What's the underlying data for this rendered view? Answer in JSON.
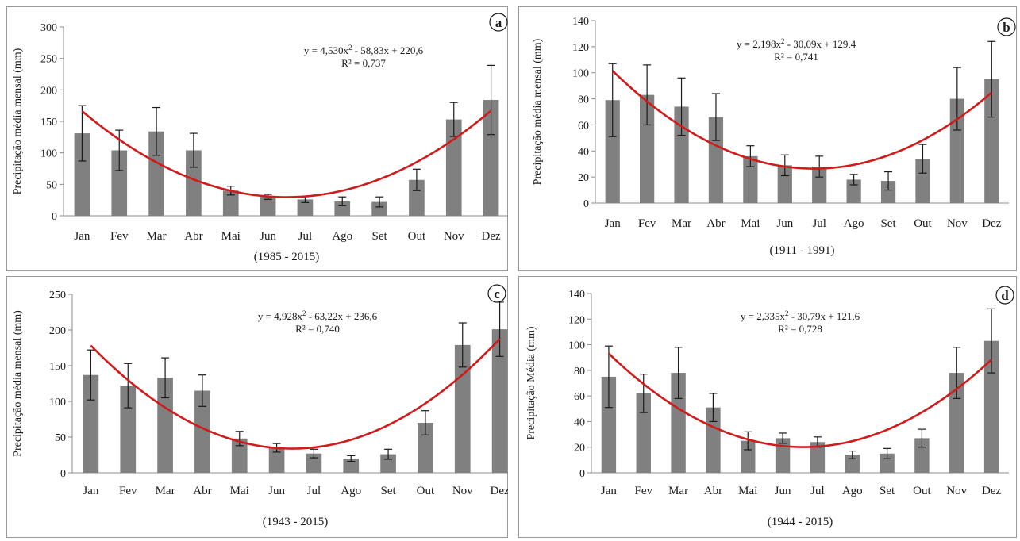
{
  "chart_data": [
    {
      "type": "bar",
      "panel": "a",
      "categories": [
        "Jan",
        "Fev",
        "Mar",
        "Abr",
        "Mai",
        "Jun",
        "Jul",
        "Ago",
        "Set",
        "Out",
        "Nov",
        "Dez"
      ],
      "values": [
        131,
        104,
        134,
        104,
        40,
        30,
        26,
        23,
        22,
        57,
        153,
        184
      ],
      "error": [
        44,
        32,
        38,
        27,
        7,
        4,
        5,
        7,
        8,
        17,
        27,
        55
      ],
      "ylim": [
        0,
        300
      ],
      "yticks": [
        0,
        50,
        100,
        150,
        200,
        250,
        300
      ],
      "ylabel": "Precipitação média mensal (mm)",
      "period": "(1985 - 2015)",
      "fit": {
        "a": 4.53,
        "b": -58.83,
        "c": 220.6,
        "eq_left": "y = 4,530x",
        "eq_right": " - 58,83x + 220,6",
        "r2": "R² = 0,737"
      },
      "legend": "none",
      "grid": false
    },
    {
      "type": "bar",
      "panel": "b",
      "categories": [
        "Jan",
        "Fev",
        "Mar",
        "Abr",
        "Mai",
        "Jun",
        "Jul",
        "Ago",
        "Set",
        "Out",
        "Nov",
        "Dez"
      ],
      "values": [
        79,
        83,
        74,
        66,
        36,
        29,
        28,
        18,
        17,
        34,
        80,
        95
      ],
      "error": [
        28,
        23,
        22,
        18,
        8,
        8,
        8,
        4,
        7,
        11,
        24,
        29
      ],
      "ylim": [
        0,
        140
      ],
      "yticks": [
        0,
        20,
        40,
        60,
        80,
        100,
        120,
        140
      ],
      "ylabel": "Precipitação média mensal (mm)",
      "period": "(1911 - 1991)",
      "fit": {
        "a": 2.198,
        "b": -30.09,
        "c": 129.4,
        "eq_left": "y = 2,198x",
        "eq_right": " - 30,09x + 129,4",
        "r2": "R² = 0,741"
      },
      "legend": "none",
      "grid": false
    },
    {
      "type": "bar",
      "panel": "c",
      "categories": [
        "Jan",
        "Fev",
        "Mar",
        "Abr",
        "Mai",
        "Jun",
        "Jul",
        "Ago",
        "Set",
        "Out",
        "Nov",
        "Dez"
      ],
      "values": [
        137,
        122,
        133,
        115,
        48,
        35,
        27,
        20,
        26,
        70,
        179,
        201
      ],
      "error": [
        35,
        31,
        28,
        22,
        10,
        6,
        6,
        4,
        7,
        17,
        31,
        38
      ],
      "ylim": [
        0,
        250
      ],
      "yticks": [
        0,
        50,
        100,
        150,
        200,
        250
      ],
      "ylabel": "Precipitação média mensal (mm)",
      "period": "(1943 - 2015)",
      "fit": {
        "a": 4.928,
        "b": -63.22,
        "c": 236.6,
        "eq_left": "y = 4,928x",
        "eq_right": " - 63,22x + 236,6",
        "r2": "R² = 0,740"
      },
      "legend": "none",
      "grid": false
    },
    {
      "type": "bar",
      "panel": "d",
      "categories": [
        "Jan",
        "Fev",
        "Mar",
        "Abr",
        "Mai",
        "Jun",
        "Jul",
        "Ago",
        "Set",
        "Out",
        "Nov",
        "Dez"
      ],
      "values": [
        75,
        62,
        78,
        51,
        25,
        27,
        24,
        14,
        15,
        27,
        78,
        103
      ],
      "error": [
        24,
        15,
        20,
        11,
        7,
        4,
        4,
        3,
        4,
        7,
        20,
        25
      ],
      "ylim": [
        0,
        140
      ],
      "yticks": [
        0,
        20,
        40,
        60,
        80,
        100,
        120,
        140
      ],
      "ylabel": "Precipitação Média (mm)",
      "period": "(1944 - 2015)",
      "fit": {
        "a": 2.335,
        "b": -30.79,
        "c": 121.6,
        "eq_left": "y = 2,335x",
        "eq_right": " - 30,79x + 121,6",
        "r2": "R² = 0,728"
      },
      "legend": "none",
      "grid": false
    }
  ],
  "equation_exponent": "2",
  "colors": {
    "bar": "#808080",
    "fit_line": "#d11a1a",
    "error_bar": "#1a1a1a"
  }
}
